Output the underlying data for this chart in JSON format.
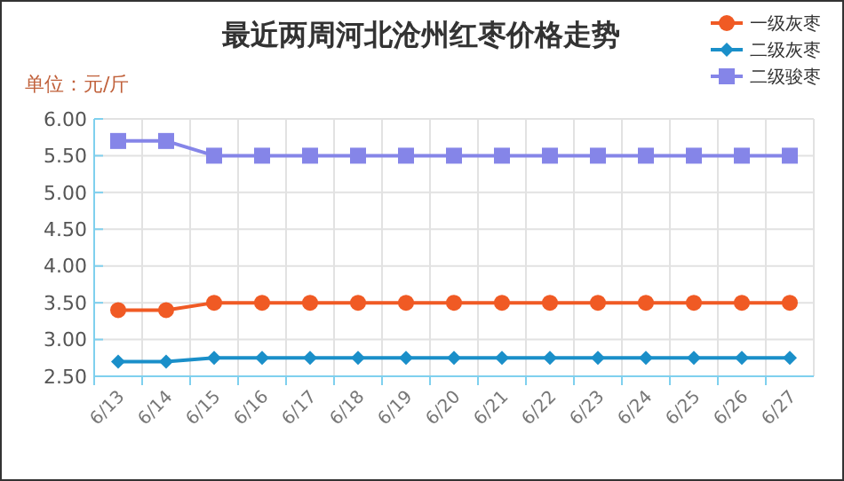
{
  "chart_data": {
    "type": "line",
    "title": "最近两周河北沧州红枣价格走势",
    "ylabel": "单位：元/斤",
    "categories": [
      "6/13",
      "6/14",
      "6/15",
      "6/16",
      "6/17",
      "6/18",
      "6/19",
      "6/20",
      "6/21",
      "6/22",
      "6/23",
      "6/24",
      "6/25",
      "6/26",
      "6/27"
    ],
    "series": [
      {
        "name": "一级灰枣",
        "color": "#f05a24",
        "marker": "circle",
        "values": [
          3.4,
          3.4,
          3.5,
          3.5,
          3.5,
          3.5,
          3.5,
          3.5,
          3.5,
          3.5,
          3.5,
          3.5,
          3.5,
          3.5,
          3.5
        ]
      },
      {
        "name": "二级灰枣",
        "color": "#1a8fc9",
        "marker": "diamond",
        "values": [
          2.7,
          2.7,
          2.75,
          2.75,
          2.75,
          2.75,
          2.75,
          2.75,
          2.75,
          2.75,
          2.75,
          2.75,
          2.75,
          2.75,
          2.75
        ]
      },
      {
        "name": "二级骏枣",
        "color": "#8585e8",
        "marker": "square",
        "values": [
          5.7,
          5.7,
          5.5,
          5.5,
          5.5,
          5.5,
          5.5,
          5.5,
          5.5,
          5.5,
          5.5,
          5.5,
          5.5,
          5.5,
          5.5
        ]
      }
    ],
    "ylim": [
      2.5,
      6
    ],
    "yticks": [
      {
        "value": 2.5,
        "label": "2.50"
      },
      {
        "value": 3,
        "label": "3.00"
      },
      {
        "value": 3.5,
        "label": "3.50"
      },
      {
        "value": 4,
        "label": "4.00"
      },
      {
        "value": 4.5,
        "label": "4.50"
      },
      {
        "value": 5,
        "label": "5.00"
      },
      {
        "value": 5.5,
        "label": "5.50"
      },
      {
        "value": 6,
        "label": "6.00"
      }
    ],
    "grid": true,
    "legend": "top right"
  }
}
